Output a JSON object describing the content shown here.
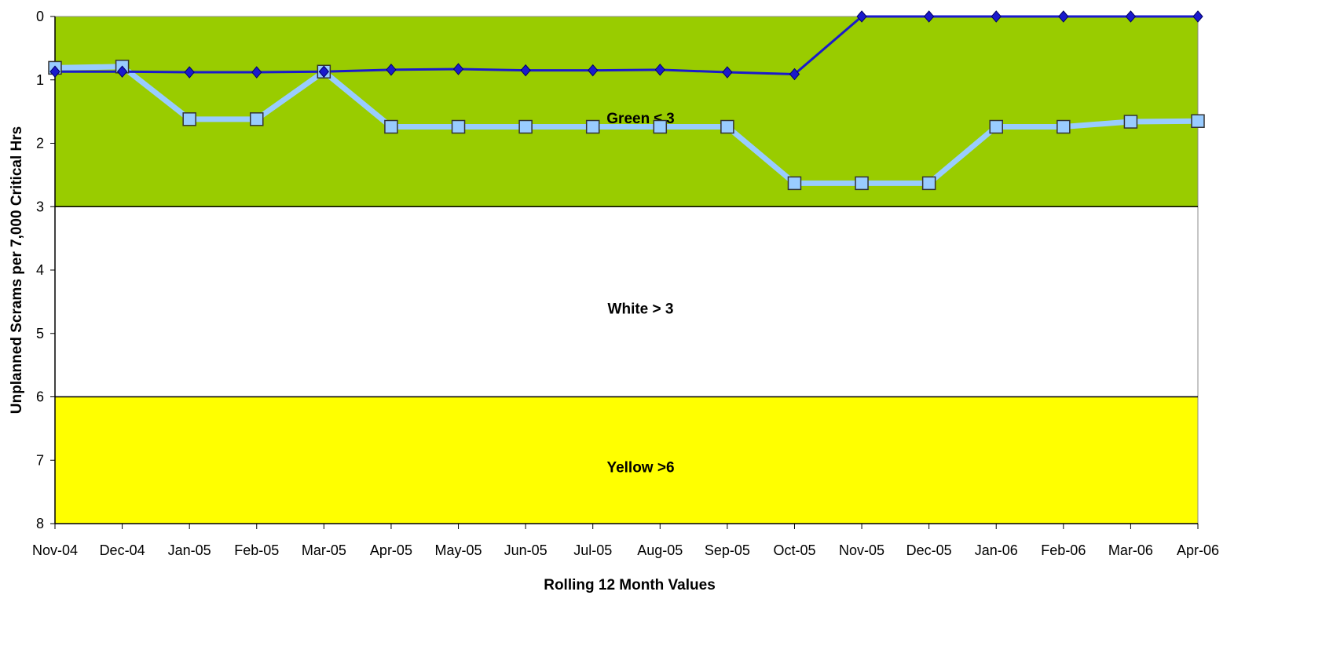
{
  "chart_data": {
    "type": "line",
    "xlabel": "Rolling 12 Month Values",
    "ylabel": "Unplanned Scrams per 7,000 Critical Hrs",
    "ylim": [
      0,
      8
    ],
    "y_inverted": true,
    "y_ticks": [
      "0",
      "1",
      "2",
      "3",
      "4",
      "5",
      "6",
      "7",
      "8"
    ],
    "grid": false,
    "categories": [
      "Nov-04",
      "Dec-04",
      "Jan-05",
      "Feb-05",
      "Mar-05",
      "Apr-05",
      "May-05",
      "Jun-05",
      "Jul-05",
      "Aug-05",
      "Sep-05",
      "Oct-05",
      "Nov-05",
      "Dec-05",
      "Jan-06",
      "Feb-06",
      "Mar-06",
      "Apr-06"
    ],
    "bands": [
      {
        "from": 0,
        "to": 3,
        "label": "Green ≤ 3",
        "color": "#99cc00"
      },
      {
        "from": 3,
        "to": 6,
        "label": "White > 3",
        "color": "#ffffff"
      },
      {
        "from": 6,
        "to": 8,
        "label": "Yellow >6",
        "color": "#ffff00"
      }
    ],
    "series": [
      {
        "marker": "diamond",
        "color": "#1a1acc",
        "values": [
          0.87,
          0.87,
          0.88,
          0.88,
          0.87,
          0.84,
          0.83,
          0.85,
          0.85,
          0.84,
          0.88,
          0.91,
          0,
          0,
          0,
          0,
          0,
          0
        ]
      },
      {
        "marker": "square",
        "color": "#99ccff",
        "values": [
          0.81,
          0.79,
          1.62,
          1.62,
          0.87,
          1.74,
          1.74,
          1.74,
          1.74,
          1.74,
          1.74,
          2.63,
          2.63,
          2.63,
          1.74,
          1.74,
          1.66,
          1.65
        ]
      }
    ]
  }
}
